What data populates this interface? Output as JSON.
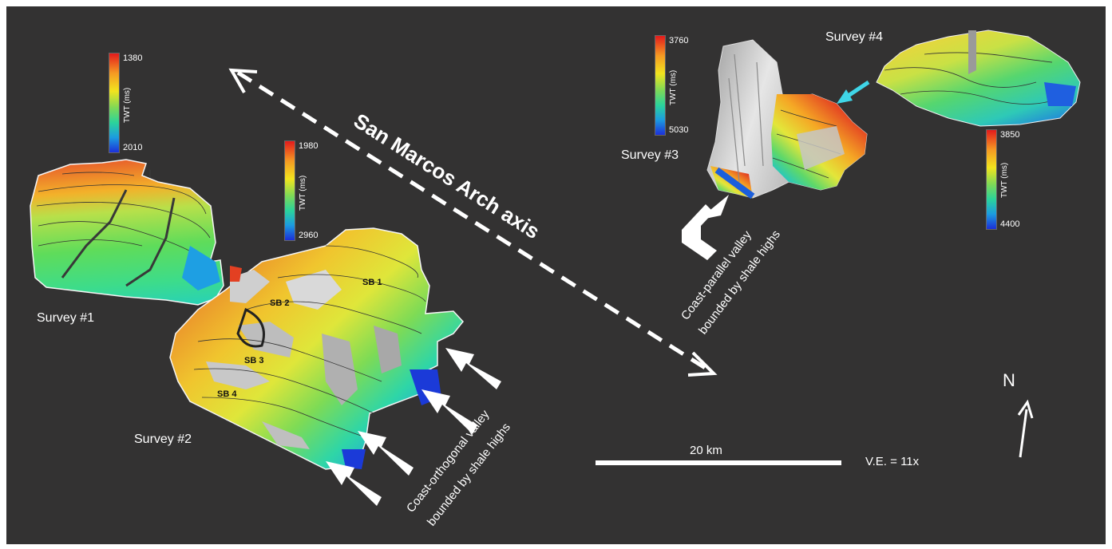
{
  "title": "San Marcos Arch axis",
  "surveys": {
    "s1": "Survey #1",
    "s2": "Survey #2",
    "s3": "Survey #3",
    "s4": "Survey #4"
  },
  "colorbars": {
    "unit_label": "TWT (ms)",
    "s1": {
      "top": "1380",
      "bottom": "2010"
    },
    "s2": {
      "top": "1980",
      "bottom": "2960"
    },
    "s3": {
      "top": "3760",
      "bottom": "5030"
    },
    "s4": {
      "top": "3850",
      "bottom": "4400"
    }
  },
  "sequence_boundaries": [
    "SB 1",
    "SB 2",
    "SB 3",
    "SB 4"
  ],
  "annotations": {
    "coast_orthogonal_line1": "Coast-orthogonal valley",
    "coast_orthogonal_line2": "bounded by shale highs",
    "coast_parallel_line1": "Coast-parallel valley",
    "coast_parallel_line2": "bounded by shale highs"
  },
  "scale_bar": "20 km",
  "vertical_exaggeration": "V.E. = 11x",
  "north_label": "N",
  "colors": {
    "background": "#333232",
    "colormap": [
      "#e31a1c",
      "#f59a23",
      "#f2e41e",
      "#7ed957",
      "#2bd39b",
      "#1c9be0",
      "#1c2fd9"
    ],
    "arrow_survey4": "#3fd6e8"
  }
}
